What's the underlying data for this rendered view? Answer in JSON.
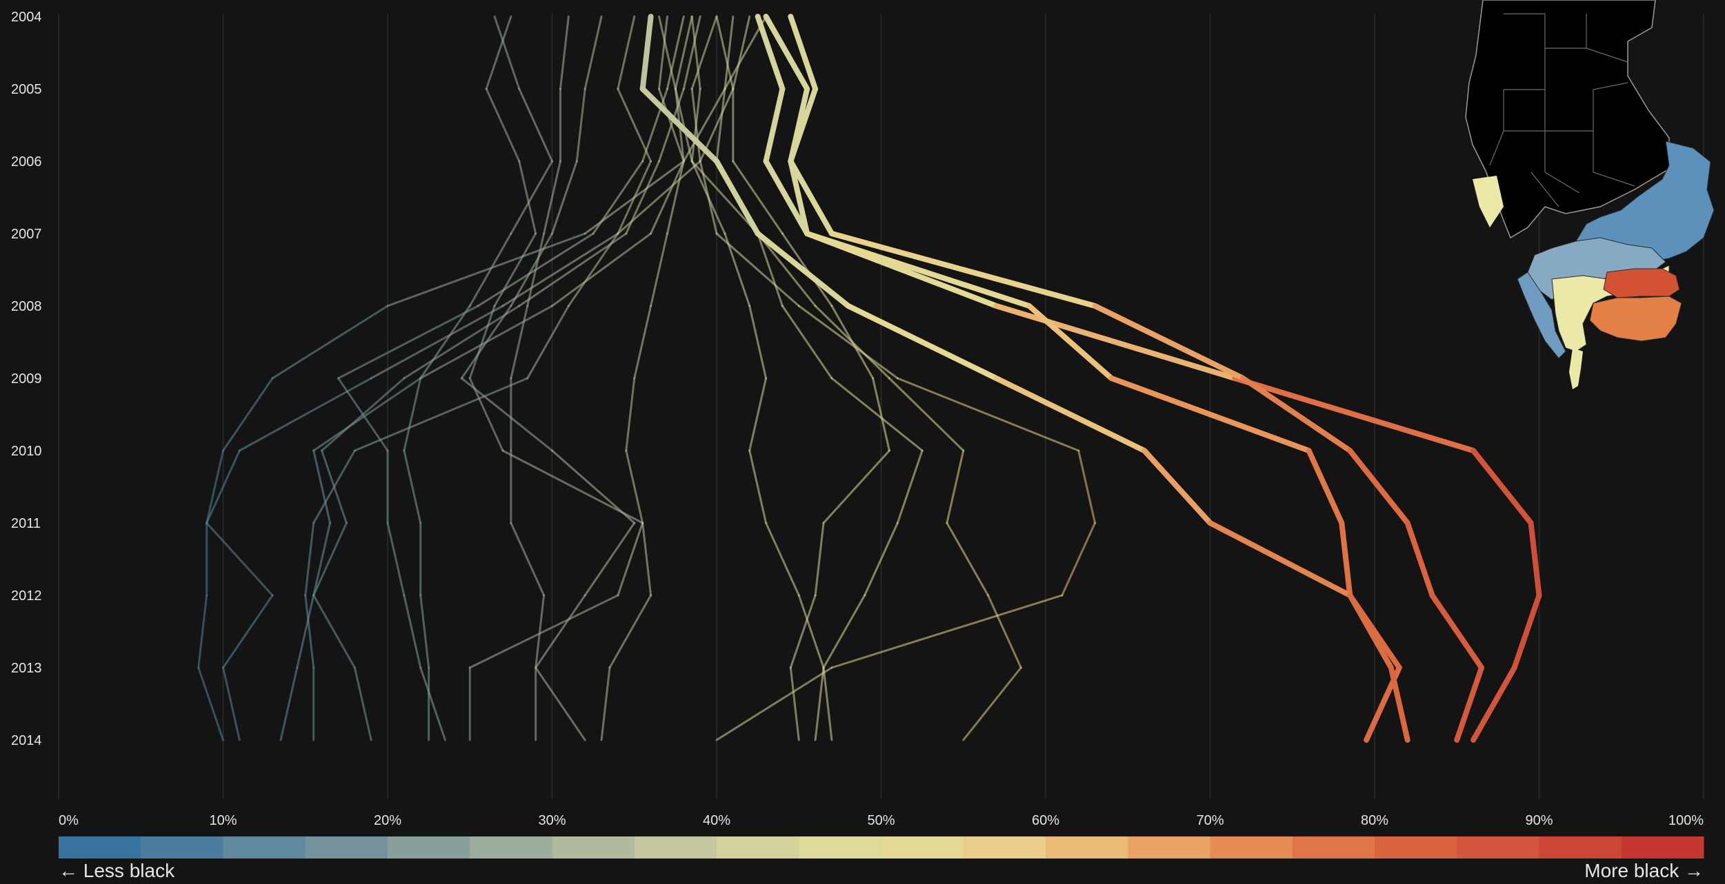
{
  "chart_data": {
    "type": "line",
    "years": [
      "2004",
      "2005",
      "2006",
      "2007",
      "2008",
      "2009",
      "2010",
      "2011",
      "2012",
      "2013",
      "2014"
    ],
    "xlim": [
      0,
      100
    ],
    "x_ticks": [
      "0%",
      "10%",
      "20%",
      "30%",
      "40%",
      "50%",
      "60%",
      "70%",
      "80%",
      "90%",
      "100%"
    ],
    "grid": true,
    "legend": {
      "left_label": "← Less black",
      "right_label": "More black →"
    },
    "color_scale": [
      "#2d6f9f",
      "#3f78a4",
      "#56819e",
      "#6a8d9d",
      "#7e989b",
      "#92a59a",
      "#a5b299",
      "#bcc19b",
      "#cfcf9e",
      "#e0dc9d",
      "#e7de98",
      "#ebcf88",
      "#edbc76",
      "#ee a865",
      "#ea9256",
      "#e47f4b",
      "#dd6b42",
      "#d5583b",
      "#cc4535",
      "#c12f2f"
    ],
    "series": [
      {
        "values": [
          44.5,
          46,
          44.5,
          45.5,
          57,
          71.5,
          86,
          89.5,
          90,
          88.5,
          86
        ],
        "weight": "strong"
      },
      {
        "values": [
          43,
          45.5,
          44.5,
          47,
          63,
          72,
          78.5,
          82,
          83.5,
          86.5,
          85
        ],
        "weight": "strong"
      },
      {
        "values": [
          42.5,
          44,
          43,
          45.5,
          59,
          64,
          76,
          78,
          78.5,
          81.5,
          79.5
        ],
        "weight": "strong"
      },
      {
        "values": [
          36,
          35.5,
          40,
          42.5,
          48,
          57,
          66,
          70,
          78.5,
          81,
          82
        ],
        "weight": "strong"
      },
      {
        "values": [
          43,
          40.5,
          38,
          32,
          20,
          13,
          10,
          9,
          9,
          8.5,
          10
        ]
      },
      {
        "values": [
          40,
          38.5,
          39,
          34,
          27,
          19,
          11,
          9,
          13,
          10,
          11
        ]
      },
      {
        "values": [
          37,
          36.5,
          38,
          36,
          30,
          22,
          15.5,
          16.5,
          15.5,
          14.5,
          13.5
        ]
      },
      {
        "values": [
          39,
          38,
          36.5,
          34.5,
          28,
          21,
          16,
          17.5,
          15.5,
          18,
          19
        ]
      },
      {
        "values": [
          38,
          37,
          35.5,
          32.5,
          25.5,
          17,
          20,
          20,
          21,
          22,
          23.5
        ]
      },
      {
        "values": [
          35,
          34,
          36,
          34,
          31,
          28.5,
          18,
          15.5,
          15,
          15.5,
          15.5
        ]
      },
      {
        "values": [
          33,
          32,
          31.5,
          30,
          27.5,
          24.5,
          30,
          35,
          32,
          29,
          32
        ]
      },
      {
        "values": [
          31,
          30.5,
          30.5,
          29.5,
          28.5,
          27.5,
          27.5,
          27.5,
          29.5,
          29,
          29
        ]
      },
      {
        "values": [
          27.5,
          26,
          28,
          29,
          26.5,
          25,
          27,
          35.5,
          34,
          25,
          25
        ]
      },
      {
        "values": [
          26.5,
          28,
          30,
          27.5,
          25,
          22,
          21,
          22,
          22,
          22.5,
          22.5
        ]
      },
      {
        "values": [
          38.5,
          37.5,
          38.5,
          40.5,
          42,
          43,
          42,
          43,
          45,
          46.5,
          47
        ]
      },
      {
        "values": [
          38.5,
          39,
          38.5,
          42.5,
          44,
          47,
          52.5,
          51,
          49,
          46.5,
          46
        ]
      },
      {
        "values": [
          41,
          40.5,
          40,
          42.5,
          46,
          50.5,
          55,
          54,
          56.5,
          58.5,
          55
        ]
      },
      {
        "values": [
          40,
          41,
          41,
          44,
          47,
          49.5,
          50.5,
          46.5,
          46,
          44.5,
          45
        ]
      },
      {
        "values": [
          42,
          41,
          39,
          40,
          45,
          51,
          62,
          63,
          61,
          47,
          40
        ]
      },
      {
        "values": [
          36.5,
          37.5,
          38,
          37,
          36,
          35,
          34.5,
          35.5,
          36,
          33.5,
          33
        ]
      }
    ]
  },
  "map": {
    "colors": {
      "black": "#000000",
      "blue": "#5b91bb",
      "lightblue": "#86a9c4",
      "yellow": "#ece9a8",
      "orange": "#e47f45",
      "red": "#d35233"
    }
  }
}
